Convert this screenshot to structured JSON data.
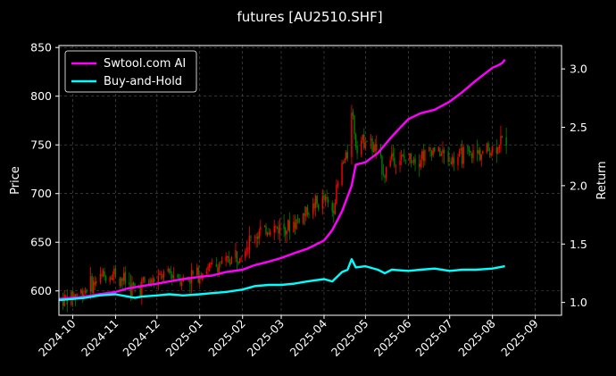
{
  "chart_data": {
    "type": "line",
    "title": "futures [AU2510.SHF]",
    "ylabel_left": "Price",
    "ylabel_right": "Return",
    "x_ticks": [
      "2024-10",
      "2024-11",
      "2024-12",
      "2025-01",
      "2025-02",
      "2025-03",
      "2025-04",
      "2025-05",
      "2025-06",
      "2025-07",
      "2025-08",
      "2025-09"
    ],
    "xlim": [
      "2024-09-21",
      "2025-09-20"
    ],
    "ylim_left": [
      575,
      852
    ],
    "y_ticks_left": [
      600,
      650,
      700,
      750,
      800,
      850
    ],
    "ylim_right": [
      0.89,
      3.2
    ],
    "y_ticks_right": [
      1.0,
      1.5,
      2.0,
      2.5,
      3.0
    ],
    "grid": true,
    "legend_position": "top-left",
    "colors": {
      "background": "#000000",
      "up_candle": "#ff0000",
      "down_candle": "#008000",
      "ai_line": "#ff00ff",
      "bh_line": "#00ffff"
    },
    "series": [
      {
        "name": "Swtool.com AI",
        "axis": "right",
        "points": [
          [
            "2024-09-21",
            1.03
          ],
          [
            "2024-10-01",
            1.04
          ],
          [
            "2024-10-10",
            1.05
          ],
          [
            "2024-10-20",
            1.07
          ],
          [
            "2024-11-01",
            1.09
          ],
          [
            "2024-11-10",
            1.12
          ],
          [
            "2024-11-20",
            1.14
          ],
          [
            "2024-12-01",
            1.16
          ],
          [
            "2024-12-10",
            1.18
          ],
          [
            "2024-12-20",
            1.2
          ],
          [
            "2025-01-01",
            1.22
          ],
          [
            "2025-01-10",
            1.23
          ],
          [
            "2025-01-20",
            1.26
          ],
          [
            "2025-02-01",
            1.28
          ],
          [
            "2025-02-10",
            1.32
          ],
          [
            "2025-02-20",
            1.35
          ],
          [
            "2025-03-01",
            1.38
          ],
          [
            "2025-03-10",
            1.42
          ],
          [
            "2025-03-20",
            1.46
          ],
          [
            "2025-04-01",
            1.53
          ],
          [
            "2025-04-07",
            1.62
          ],
          [
            "2025-04-14",
            1.78
          ],
          [
            "2025-04-21",
            2.0
          ],
          [
            "2025-04-24",
            2.18
          ],
          [
            "2025-05-01",
            2.2
          ],
          [
            "2025-05-10",
            2.28
          ],
          [
            "2025-05-20",
            2.42
          ],
          [
            "2025-06-01",
            2.57
          ],
          [
            "2025-06-10",
            2.62
          ],
          [
            "2025-06-20",
            2.65
          ],
          [
            "2025-07-01",
            2.72
          ],
          [
            "2025-07-10",
            2.8
          ],
          [
            "2025-07-20",
            2.9
          ],
          [
            "2025-08-01",
            3.01
          ],
          [
            "2025-08-05",
            3.03
          ],
          [
            "2025-08-08",
            3.05
          ],
          [
            "2025-08-10",
            3.08
          ]
        ]
      },
      {
        "name": "Buy-and-Hold",
        "axis": "right",
        "points": [
          [
            "2024-09-21",
            1.02
          ],
          [
            "2024-10-01",
            1.03
          ],
          [
            "2024-10-10",
            1.04
          ],
          [
            "2024-10-20",
            1.06
          ],
          [
            "2024-11-01",
            1.07
          ],
          [
            "2024-11-10",
            1.05
          ],
          [
            "2024-11-15",
            1.04
          ],
          [
            "2024-11-20",
            1.05
          ],
          [
            "2024-12-01",
            1.06
          ],
          [
            "2024-12-10",
            1.07
          ],
          [
            "2024-12-20",
            1.06
          ],
          [
            "2025-01-01",
            1.07
          ],
          [
            "2025-01-10",
            1.08
          ],
          [
            "2025-01-20",
            1.09
          ],
          [
            "2025-02-01",
            1.11
          ],
          [
            "2025-02-10",
            1.14
          ],
          [
            "2025-02-20",
            1.15
          ],
          [
            "2025-03-01",
            1.15
          ],
          [
            "2025-03-10",
            1.16
          ],
          [
            "2025-03-20",
            1.18
          ],
          [
            "2025-04-01",
            1.2
          ],
          [
            "2025-04-07",
            1.18
          ],
          [
            "2025-04-14",
            1.26
          ],
          [
            "2025-04-18",
            1.28
          ],
          [
            "2025-04-21",
            1.37
          ],
          [
            "2025-04-24",
            1.3
          ],
          [
            "2025-05-01",
            1.31
          ],
          [
            "2025-05-10",
            1.28
          ],
          [
            "2025-05-15",
            1.25
          ],
          [
            "2025-05-20",
            1.28
          ],
          [
            "2025-06-01",
            1.27
          ],
          [
            "2025-06-10",
            1.28
          ],
          [
            "2025-06-20",
            1.29
          ],
          [
            "2025-07-01",
            1.27
          ],
          [
            "2025-07-10",
            1.28
          ],
          [
            "2025-07-20",
            1.28
          ],
          [
            "2025-08-01",
            1.29
          ],
          [
            "2025-08-10",
            1.31
          ]
        ]
      }
    ]
  }
}
